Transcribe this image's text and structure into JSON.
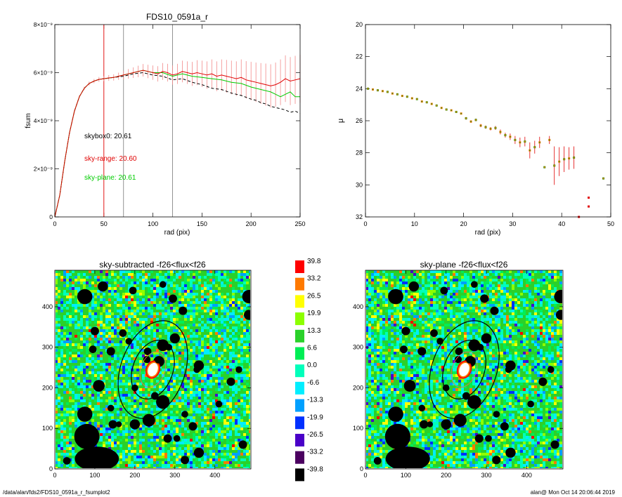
{
  "footer": {
    "path": "/data/alan/fds2/FDS10_0591a_r_fsumplot2",
    "stamp": "alan@  Mon Oct 14 20:06:44 2019"
  },
  "chart_data": [
    {
      "id": "fsum",
      "type": "line",
      "title": "FDS10_0591a_r",
      "xlabel": "rad (pix)",
      "ylabel": "fsum",
      "xlim": [
        0,
        250
      ],
      "ylim": [
        0,
        8e-09
      ],
      "xticks": [
        "0",
        "50",
        "100",
        "150",
        "200",
        "250"
      ],
      "yticks": [
        "0",
        "2×10⁻⁹",
        "4×10⁻⁹",
        "6×10⁻⁹",
        "8×10⁻⁹"
      ],
      "vlines": [
        {
          "x": 50,
          "color": "#e00000"
        },
        {
          "x": 70,
          "color": "#888888"
        },
        {
          "x": 120,
          "color": "#888888"
        }
      ],
      "annotations": [
        {
          "text": "skybox0: 20.61",
          "color": "#000000"
        },
        {
          "text": "sky-range: 20.60",
          "color": "#e00000"
        },
        {
          "text": "sky-plane: 20.61",
          "color": "#00cc00"
        }
      ],
      "series": [
        {
          "line": "solid",
          "color": "#e00000",
          "errcolor": "#f28a8a",
          "x": [
            0,
            5,
            10,
            15,
            20,
            25,
            30,
            35,
            40,
            45,
            50,
            55,
            60,
            65,
            70,
            75,
            80,
            85,
            90,
            95,
            100,
            105,
            110,
            115,
            120,
            125,
            130,
            135,
            140,
            145,
            150,
            155,
            160,
            165,
            170,
            175,
            180,
            185,
            190,
            195,
            200,
            205,
            210,
            215,
            220,
            225,
            230,
            235,
            240,
            245,
            250
          ],
          "y": [
            0,
            9e-10,
            2.3e-09,
            3.5e-09,
            4.4e-09,
            5e-09,
            5.35e-09,
            5.55e-09,
            5.65e-09,
            5.72e-09,
            5.75e-09,
            5.78e-09,
            5.8e-09,
            5.85e-09,
            5.9e-09,
            5.95e-09,
            6e-09,
            6.05e-09,
            6.1e-09,
            6.05e-09,
            6e-09,
            5.95e-09,
            6.05e-09,
            6e-09,
            5.9e-09,
            5.95e-09,
            6.05e-09,
            6e-09,
            5.95e-09,
            6e-09,
            5.95e-09,
            5.9e-09,
            5.95e-09,
            5.85e-09,
            5.9e-09,
            5.85e-09,
            5.8e-09,
            5.75e-09,
            5.8e-09,
            5.7e-09,
            5.65e-09,
            5.6e-09,
            5.55e-09,
            5.5e-09,
            5.45e-09,
            5.5e-09,
            5.6e-09,
            5.75e-09,
            5.65e-09,
            5.7e-09,
            5.75e-09
          ],
          "err": [
            0,
            2e-11,
            3e-11,
            4e-11,
            5e-11,
            6e-11,
            7e-11,
            8e-11,
            9e-11,
            1e-10,
            1e-10,
            1.2e-10,
            1.3e-10,
            1.5e-10,
            1.8e-10,
            2e-10,
            2.2e-10,
            2.4e-10,
            2.6e-10,
            2.8e-10,
            3e-10,
            3.2e-10,
            3.5e-10,
            3.7e-10,
            4e-10,
            4.2e-10,
            4.5e-10,
            4.7e-10,
            5e-10,
            5.2e-10,
            5.5e-10,
            5.7e-10,
            6e-10,
            6.2e-10,
            6.5e-10,
            6.8e-10,
            7e-10,
            7.2e-10,
            7.5e-10,
            7.8e-10,
            8e-10,
            8.2e-10,
            8.5e-10,
            8.8e-10,
            9e-10,
            9.2e-10,
            9.5e-10,
            9.7e-10,
            1e-09,
            1e-09,
            1e-09
          ]
        },
        {
          "line": "solid",
          "color": "#00cc00",
          "x": [
            0,
            5,
            10,
            15,
            20,
            25,
            30,
            35,
            40,
            45,
            50,
            60,
            70,
            80,
            90,
            100,
            110,
            120,
            130,
            140,
            150,
            160,
            170,
            180,
            190,
            200,
            210,
            220,
            225,
            230,
            235,
            240,
            245,
            250
          ],
          "y": [
            0,
            9e-10,
            2.3e-09,
            3.5e-09,
            4.4e-09,
            5e-09,
            5.35e-09,
            5.55e-09,
            5.65e-09,
            5.72e-09,
            5.75e-09,
            5.8e-09,
            5.9e-09,
            6e-09,
            6.1e-09,
            6e-09,
            6e-09,
            5.85e-09,
            5.95e-09,
            5.85e-09,
            5.8e-09,
            5.75e-09,
            5.7e-09,
            5.6e-09,
            5.55e-09,
            5.4e-09,
            5.3e-09,
            5.2e-09,
            5.1e-09,
            5e-09,
            5.1e-09,
            5.2e-09,
            5e-09,
            5e-09
          ]
        },
        {
          "line": "dashed",
          "color": "#000000",
          "x": [
            0,
            5,
            10,
            15,
            20,
            25,
            30,
            35,
            40,
            45,
            50,
            60,
            70,
            80,
            90,
            100,
            110,
            120,
            130,
            140,
            150,
            160,
            170,
            180,
            190,
            200,
            205,
            210,
            215,
            220,
            225,
            230,
            235,
            240,
            245,
            250
          ],
          "y": [
            0,
            9e-10,
            2.3e-09,
            3.5e-09,
            4.4e-09,
            5e-09,
            5.35e-09,
            5.55e-09,
            5.65e-09,
            5.72e-09,
            5.75e-09,
            5.8e-09,
            5.85e-09,
            5.95e-09,
            6e-09,
            5.9e-09,
            5.85e-09,
            5.7e-09,
            5.75e-09,
            5.6e-09,
            5.5e-09,
            5.35e-09,
            5.3e-09,
            5.15e-09,
            5.05e-09,
            4.9e-09,
            4.85e-09,
            4.75e-09,
            4.7e-09,
            4.6e-09,
            4.55e-09,
            4.5e-09,
            4.45e-09,
            4.35e-09,
            4.4e-09,
            4.3e-09
          ]
        }
      ]
    },
    {
      "id": "mu",
      "type": "scatter",
      "title": "",
      "xlabel": "rad (pix)",
      "ylabel": "μ",
      "xlim": [
        0,
        50
      ],
      "ylim": [
        32,
        20
      ],
      "xticks": [
        "0",
        "10",
        "20",
        "30",
        "40",
        "50"
      ],
      "yticks": [
        "20",
        "22",
        "24",
        "26",
        "28",
        "30",
        "32"
      ],
      "points": [
        {
          "x": 0.5,
          "y": 24.0,
          "err": 0.05
        },
        {
          "x": 1.5,
          "y": 24.05,
          "err": 0.05
        },
        {
          "x": 2.5,
          "y": 24.1,
          "err": 0.05
        },
        {
          "x": 3.5,
          "y": 24.15,
          "err": 0.05
        },
        {
          "x": 4.5,
          "y": 24.2,
          "err": 0.05
        },
        {
          "x": 5.5,
          "y": 24.3,
          "err": 0.05
        },
        {
          "x": 6.5,
          "y": 24.35,
          "err": 0.05
        },
        {
          "x": 7.5,
          "y": 24.45,
          "err": 0.05
        },
        {
          "x": 8.5,
          "y": 24.5,
          "err": 0.05
        },
        {
          "x": 9.5,
          "y": 24.6,
          "err": 0.05
        },
        {
          "x": 10.5,
          "y": 24.65,
          "err": 0.05
        },
        {
          "x": 11.5,
          "y": 24.8,
          "err": 0.05
        },
        {
          "x": 12.5,
          "y": 24.85,
          "err": 0.05
        },
        {
          "x": 13.5,
          "y": 24.95,
          "err": 0.05
        },
        {
          "x": 14.5,
          "y": 25.05,
          "err": 0.05
        },
        {
          "x": 15.5,
          "y": 25.2,
          "err": 0.05
        },
        {
          "x": 16.5,
          "y": 25.3,
          "err": 0.05
        },
        {
          "x": 17.5,
          "y": 25.35,
          "err": 0.05
        },
        {
          "x": 18.5,
          "y": 25.45,
          "err": 0.05
        },
        {
          "x": 19.5,
          "y": 25.55,
          "err": 0.05
        },
        {
          "x": 20.5,
          "y": 25.85,
          "err": 0.08
        },
        {
          "x": 21.5,
          "y": 26.05,
          "err": 0.08
        },
        {
          "x": 22.5,
          "y": 25.95,
          "err": 0.08
        },
        {
          "x": 23.5,
          "y": 26.3,
          "err": 0.1
        },
        {
          "x": 24.5,
          "y": 26.4,
          "err": 0.1
        },
        {
          "x": 25.5,
          "y": 26.5,
          "err": 0.1
        },
        {
          "x": 26.5,
          "y": 26.45,
          "err": 0.12
        },
        {
          "x": 27.5,
          "y": 26.7,
          "err": 0.15
        },
        {
          "x": 28.5,
          "y": 26.9,
          "err": 0.15
        },
        {
          "x": 29.5,
          "y": 27.0,
          "err": 0.2
        },
        {
          "x": 30.5,
          "y": 27.2,
          "err": 0.25
        },
        {
          "x": 31.5,
          "y": 27.35,
          "err": 0.3
        },
        {
          "x": 32.5,
          "y": 27.3,
          "err": 0.3
        },
        {
          "x": 33.5,
          "y": 27.85,
          "err": 0.5
        },
        {
          "x": 34.5,
          "y": 27.65,
          "err": 0.4
        },
        {
          "x": 35.5,
          "y": 27.35,
          "err": 0.35
        },
        {
          "x": 36.5,
          "y": 28.9,
          "err": 0.05
        },
        {
          "x": 37.5,
          "y": 27.2,
          "err": 0.25
        },
        {
          "x": 38.5,
          "y": 28.8,
          "err": 1.2
        },
        {
          "x": 39.5,
          "y": 28.55,
          "err": 0.9
        },
        {
          "x": 40.5,
          "y": 28.4,
          "err": 0.8
        },
        {
          "x": 41.5,
          "y": 28.35,
          "err": 0.7
        },
        {
          "x": 42.5,
          "y": 28.3,
          "err": 0.7
        },
        {
          "x": 43.5,
          "y": 32.0,
          "err": 0.0
        },
        {
          "x": 45.5,
          "y": 30.8,
          "err": 0.0
        },
        {
          "x": 45.5,
          "y": 31.35,
          "err": 0.0
        },
        {
          "x": 48.5,
          "y": 29.6,
          "err": 0.05
        }
      ],
      "point_colors": [
        "#3f8f00",
        "#f07800"
      ],
      "special_colors": {
        "43.5": "#e00000",
        "45.5": "#e00000"
      }
    },
    {
      "id": "skysub",
      "type": "heatmap",
      "title": "sky-subtracted -f26<flux<f26",
      "xlim": [
        0,
        490
      ],
      "ylim": [
        0,
        490
      ],
      "xticks": [
        "0",
        "100",
        "200",
        "300",
        "400"
      ],
      "yticks": [
        "0",
        "100",
        "200",
        "300",
        "400"
      ]
    },
    {
      "id": "skyplane",
      "type": "heatmap",
      "title": "sky-plane -f26<flux<f26",
      "xlim": [
        0,
        490
      ],
      "ylim": [
        0,
        490
      ],
      "xticks": [
        "0",
        "100",
        "200",
        "300",
        "400"
      ],
      "yticks": [
        "0",
        "100",
        "200",
        "300",
        "400"
      ]
    },
    {
      "id": "colorbar",
      "type": "table",
      "labels": [
        "39.8",
        "33.2",
        "26.5",
        "19.9",
        "13.3",
        "6.6",
        "0.0",
        "-6.6",
        "-13.3",
        "-19.9",
        "-26.5",
        "-33.2",
        "-39.8"
      ],
      "colors": [
        "#ff0000",
        "#ff7a00",
        "#ffff00",
        "#8cff00",
        "#2ad12a",
        "#00ee55",
        "#00ffbb",
        "#00eeff",
        "#00a0ff",
        "#0030ff",
        "#4a00c8",
        "#4b0060",
        "#000000"
      ]
    }
  ]
}
